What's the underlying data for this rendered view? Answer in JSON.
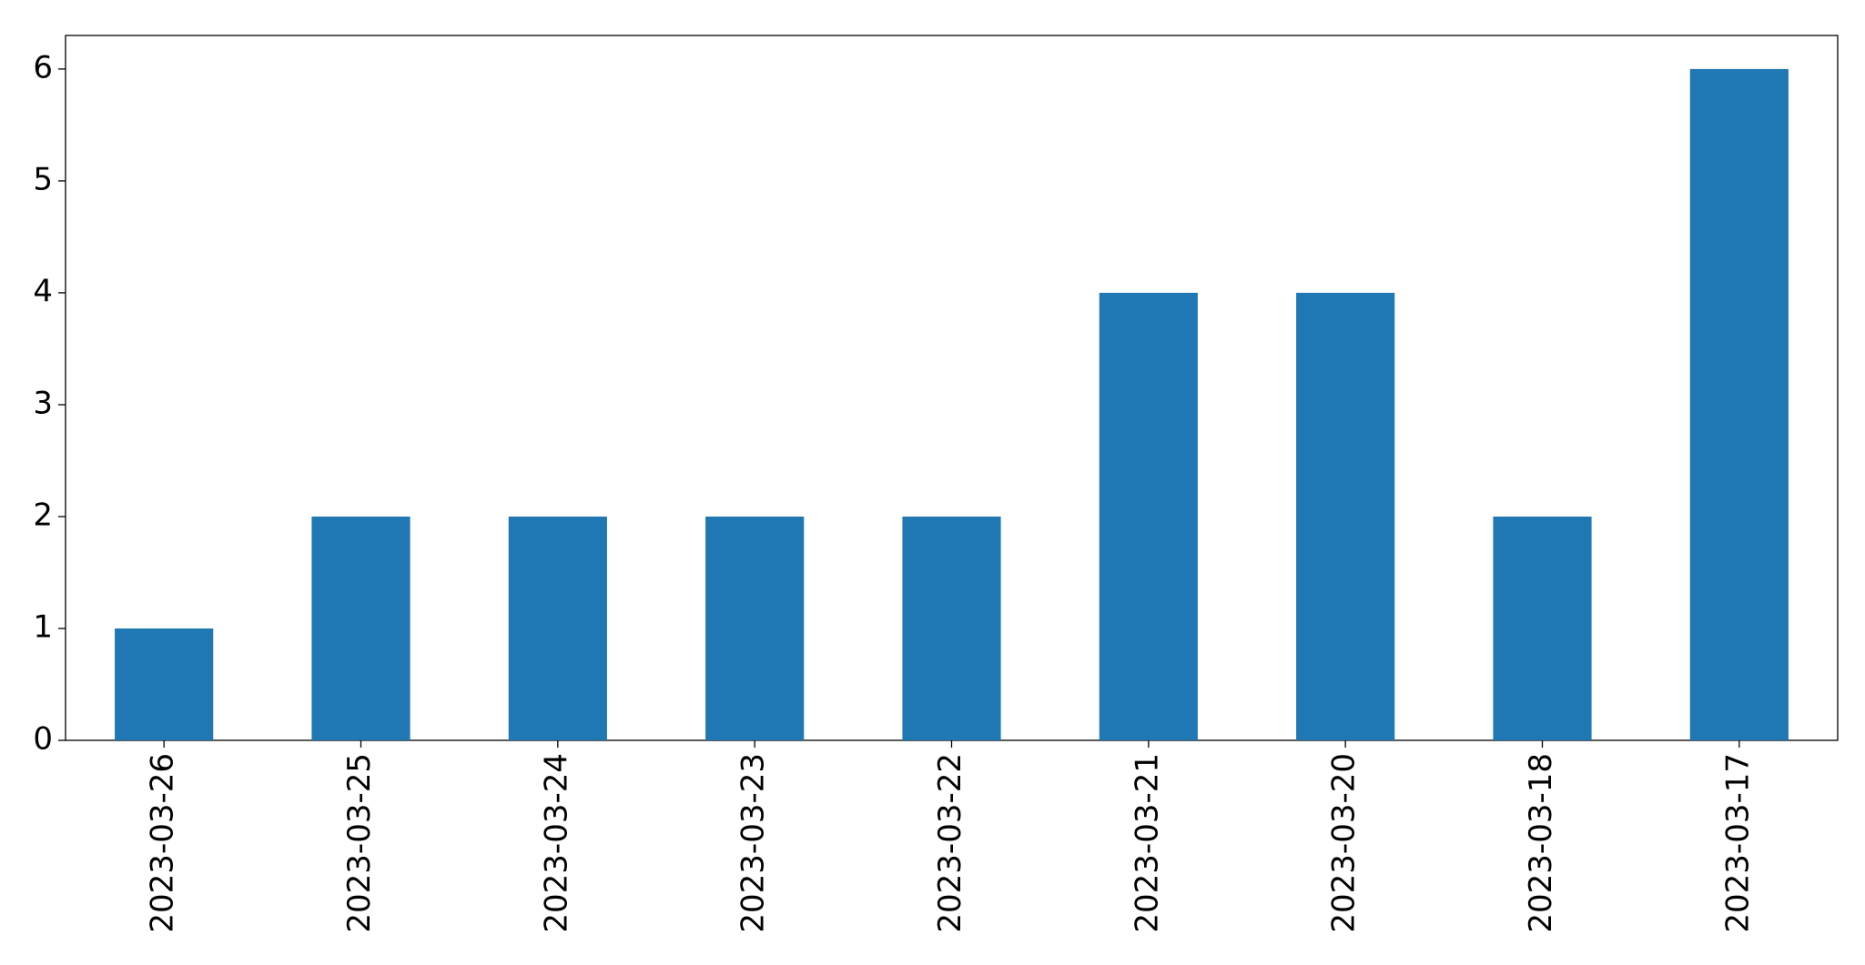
{
  "chart_data": {
    "type": "bar",
    "categories": [
      "2023-03-26",
      "2023-03-25",
      "2023-03-24",
      "2023-03-23",
      "2023-03-22",
      "2023-03-21",
      "2023-03-20",
      "2023-03-18",
      "2023-03-17"
    ],
    "values": [
      1,
      2,
      2,
      2,
      2,
      4,
      4,
      2,
      6
    ],
    "color": "#1f77b4",
    "ylim": [
      0,
      6.3
    ],
    "yticks": [
      0,
      1,
      2,
      3,
      4,
      5,
      6
    ],
    "grid": false
  }
}
